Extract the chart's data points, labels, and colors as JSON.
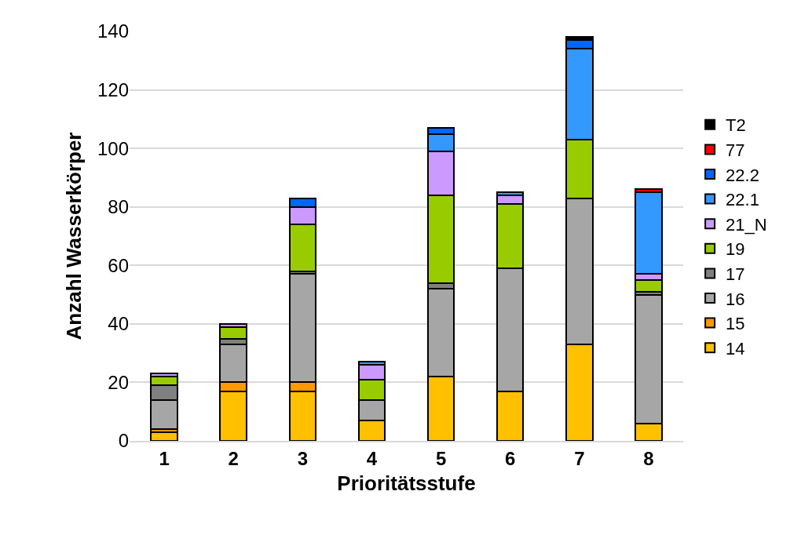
{
  "chart_data": {
    "type": "bar",
    "stacked": true,
    "xlabel": "Prioritätsstufe",
    "ylabel": "Anzahl Wasserkörper",
    "categories": [
      "1",
      "2",
      "3",
      "4",
      "5",
      "6",
      "7",
      "8"
    ],
    "series": [
      {
        "name": "14",
        "color": "#ffc000",
        "values": [
          3,
          17,
          17,
          7,
          22,
          17,
          33,
          6
        ]
      },
      {
        "name": "15",
        "color": "#ff9900",
        "values": [
          1,
          3,
          3,
          0,
          0,
          0,
          0,
          0
        ]
      },
      {
        "name": "16",
        "color": "#a6a6a6",
        "values": [
          10,
          13,
          37,
          7,
          30,
          42,
          50,
          44
        ]
      },
      {
        "name": "17",
        "color": "#808080",
        "values": [
          5,
          2,
          1,
          0,
          2,
          0,
          0,
          1
        ]
      },
      {
        "name": "19",
        "color": "#99cc00",
        "values": [
          3,
          4,
          16,
          7,
          30,
          22,
          20,
          4
        ]
      },
      {
        "name": "21_N",
        "color": "#cc99ff",
        "values": [
          1,
          1,
          6,
          5,
          15,
          3,
          0,
          2
        ]
      },
      {
        "name": "22.1",
        "color": "#3399ff",
        "values": [
          0,
          0,
          0,
          1,
          6,
          1,
          31,
          28
        ]
      },
      {
        "name": "22.2",
        "color": "#0066ff",
        "values": [
          0,
          0,
          3,
          0,
          2,
          0,
          3,
          0
        ]
      },
      {
        "name": "77",
        "color": "#ff0000",
        "values": [
          0,
          0,
          0,
          0,
          0,
          0,
          0,
          1
        ]
      },
      {
        "name": "T2",
        "color": "#000000",
        "values": [
          0,
          0,
          0,
          0,
          0,
          0,
          1,
          0
        ]
      }
    ],
    "ylim": [
      0,
      140
    ],
    "yticks": [
      0,
      20,
      40,
      60,
      80,
      100,
      120,
      140
    ],
    "grid": "y",
    "legend": "right"
  }
}
